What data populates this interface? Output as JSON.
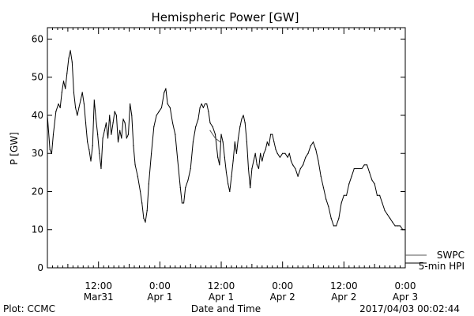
{
  "chart_data": {
    "type": "line",
    "title": "Hemispheric Power [GW]",
    "ylabel": "P [GW]",
    "xlabel": "Date and Time",
    "ylim": [
      0,
      63
    ],
    "yticks": [
      0,
      10,
      20,
      30,
      40,
      50,
      60
    ],
    "xlim": [
      "2017-03-31T02:00",
      "2017-04-03T00:00"
    ],
    "xticks": [
      {
        "t": "2017-03-31T12:00",
        "line1": "12:00",
        "line2": "Mar31"
      },
      {
        "t": "2017-04-01T00:00",
        "line1": "0:00",
        "line2": "Apr 1"
      },
      {
        "t": "2017-04-01T12:00",
        "line1": "12:00",
        "line2": "Apr 1"
      },
      {
        "t": "2017-04-02T00:00",
        "line1": "0:00",
        "line2": "Apr 2"
      },
      {
        "t": "2017-04-02T12:00",
        "line1": "12:00",
        "line2": "Apr 2"
      },
      {
        "t": "2017-04-03T00:00",
        "line1": "0:00",
        "line2": "Apr 3"
      }
    ],
    "grid": false,
    "legend": {
      "placement": "bottom-right outside",
      "entries": [
        "SWPC",
        "5-min HPI"
      ]
    },
    "series": [
      {
        "name": "5-min HPI",
        "color": "#000000",
        "points": [
          [
            "2017-03-31T02:00",
            40
          ],
          [
            "2017-03-31T02:30",
            31
          ],
          [
            "2017-03-31T02:50",
            30
          ],
          [
            "2017-03-31T03:10",
            35
          ],
          [
            "2017-03-31T03:40",
            41
          ],
          [
            "2017-03-31T04:10",
            43
          ],
          [
            "2017-03-31T04:30",
            42
          ],
          [
            "2017-03-31T04:50",
            46
          ],
          [
            "2017-03-31T05:10",
            49
          ],
          [
            "2017-03-31T05:30",
            47
          ],
          [
            "2017-03-31T05:50",
            51
          ],
          [
            "2017-03-31T06:10",
            55
          ],
          [
            "2017-03-31T06:30",
            57
          ],
          [
            "2017-03-31T06:50",
            54
          ],
          [
            "2017-03-31T07:10",
            46
          ],
          [
            "2017-03-31T07:30",
            42
          ],
          [
            "2017-03-31T07:50",
            40
          ],
          [
            "2017-03-31T08:10",
            42
          ],
          [
            "2017-03-31T08:30",
            44
          ],
          [
            "2017-03-31T08:50",
            46
          ],
          [
            "2017-03-31T09:10",
            43
          ],
          [
            "2017-03-31T09:30",
            38
          ],
          [
            "2017-03-31T09:50",
            33
          ],
          [
            "2017-03-31T10:10",
            31
          ],
          [
            "2017-03-31T10:30",
            28
          ],
          [
            "2017-03-31T10:50",
            32
          ],
          [
            "2017-03-31T11:10",
            44
          ],
          [
            "2017-03-31T11:30",
            39
          ],
          [
            "2017-03-31T11:50",
            35
          ],
          [
            "2017-03-31T12:10",
            30
          ],
          [
            "2017-03-31T12:30",
            26
          ],
          [
            "2017-03-31T12:50",
            34
          ],
          [
            "2017-03-31T13:10",
            36
          ],
          [
            "2017-03-31T13:30",
            38
          ],
          [
            "2017-03-31T13:50",
            34
          ],
          [
            "2017-03-31T14:10",
            40
          ],
          [
            "2017-03-31T14:30",
            35
          ],
          [
            "2017-03-31T14:50",
            38
          ],
          [
            "2017-03-31T15:10",
            41
          ],
          [
            "2017-03-31T15:30",
            40
          ],
          [
            "2017-03-31T15:50",
            33
          ],
          [
            "2017-03-31T16:10",
            36
          ],
          [
            "2017-03-31T16:30",
            34
          ],
          [
            "2017-03-31T16:50",
            39
          ],
          [
            "2017-03-31T17:10",
            38
          ],
          [
            "2017-03-31T17:30",
            34
          ],
          [
            "2017-03-31T17:50",
            35
          ],
          [
            "2017-03-31T18:10",
            43
          ],
          [
            "2017-03-31T18:30",
            40
          ],
          [
            "2017-03-31T18:50",
            32
          ],
          [
            "2017-03-31T19:10",
            27
          ],
          [
            "2017-03-31T19:40",
            24
          ],
          [
            "2017-03-31T20:10",
            20
          ],
          [
            "2017-03-31T20:30",
            17
          ],
          [
            "2017-03-31T20:50",
            13
          ],
          [
            "2017-03-31T21:10",
            12
          ],
          [
            "2017-03-31T21:30",
            15
          ],
          [
            "2017-03-31T21:50",
            22
          ],
          [
            "2017-03-31T22:20",
            30
          ],
          [
            "2017-03-31T22:50",
            37
          ],
          [
            "2017-03-31T23:20",
            40
          ],
          [
            "2017-03-31T23:50",
            41
          ],
          [
            "2017-04-01T00:20",
            42
          ],
          [
            "2017-04-01T00:50",
            46
          ],
          [
            "2017-04-01T01:10",
            47
          ],
          [
            "2017-04-01T01:30",
            43
          ],
          [
            "2017-04-01T02:00",
            42
          ],
          [
            "2017-04-01T02:30",
            38
          ],
          [
            "2017-04-01T03:00",
            35
          ],
          [
            "2017-04-01T03:30",
            28
          ],
          [
            "2017-04-01T04:00",
            21
          ],
          [
            "2017-04-01T04:20",
            17
          ],
          [
            "2017-04-01T04:40",
            17
          ],
          [
            "2017-04-01T05:00",
            21
          ],
          [
            "2017-04-01T05:30",
            23
          ],
          [
            "2017-04-01T06:00",
            26
          ],
          [
            "2017-04-01T06:30",
            33
          ],
          [
            "2017-04-01T07:00",
            37
          ],
          [
            "2017-04-01T07:30",
            39
          ],
          [
            "2017-04-01T07:50",
            42
          ],
          [
            "2017-04-01T08:10",
            43
          ],
          [
            "2017-04-01T08:30",
            42
          ],
          [
            "2017-04-01T08:50",
            43
          ],
          [
            "2017-04-01T09:10",
            43
          ],
          [
            "2017-04-01T09:30",
            41
          ],
          [
            "2017-04-01T09:50",
            38
          ],
          [
            "2017-04-01T10:20",
            37
          ],
          [
            "2017-04-01T10:50",
            35
          ],
          [
            "2017-04-01T11:20",
            29
          ],
          [
            "2017-04-01T11:40",
            27
          ],
          [
            "2017-04-01T12:00",
            35
          ],
          [
            "2017-04-01T12:20",
            33
          ],
          [
            "2017-04-01T12:40",
            29
          ],
          [
            "2017-04-01T13:00",
            25
          ],
          [
            "2017-04-01T13:20",
            22
          ],
          [
            "2017-04-01T13:40",
            20
          ],
          [
            "2017-04-01T14:00",
            24
          ],
          [
            "2017-04-01T14:20",
            28
          ],
          [
            "2017-04-01T14:40",
            33
          ],
          [
            "2017-04-01T15:00",
            30
          ],
          [
            "2017-04-01T15:20",
            34
          ],
          [
            "2017-04-01T15:40",
            37
          ],
          [
            "2017-04-01T16:00",
            39
          ],
          [
            "2017-04-01T16:20",
            40
          ],
          [
            "2017-04-01T16:40",
            38
          ],
          [
            "2017-04-01T17:00",
            33
          ],
          [
            "2017-04-01T17:20",
            26
          ],
          [
            "2017-04-01T17:40",
            21
          ],
          [
            "2017-04-01T18:00",
            26
          ],
          [
            "2017-04-01T18:20",
            28
          ],
          [
            "2017-04-01T18:40",
            30
          ],
          [
            "2017-04-01T19:00",
            27
          ],
          [
            "2017-04-01T19:20",
            26
          ],
          [
            "2017-04-01T19:40",
            30
          ],
          [
            "2017-04-01T20:00",
            28
          ],
          [
            "2017-04-01T20:20",
            30
          ],
          [
            "2017-04-01T20:40",
            31
          ],
          [
            "2017-04-01T21:00",
            33
          ],
          [
            "2017-04-01T21:20",
            32
          ],
          [
            "2017-04-01T21:40",
            35
          ],
          [
            "2017-04-01T22:00",
            35
          ],
          [
            "2017-04-01T22:20",
            33
          ],
          [
            "2017-04-01T22:40",
            31
          ],
          [
            "2017-04-01T23:00",
            30
          ],
          [
            "2017-04-01T23:30",
            29
          ],
          [
            "2017-04-02T00:00",
            30
          ],
          [
            "2017-04-02T00:30",
            30
          ],
          [
            "2017-04-02T01:00",
            29
          ],
          [
            "2017-04-02T01:20",
            30
          ],
          [
            "2017-04-02T01:40",
            28
          ],
          [
            "2017-04-02T02:00",
            27
          ],
          [
            "2017-04-02T02:30",
            26
          ],
          [
            "2017-04-02T03:00",
            24
          ],
          [
            "2017-04-02T03:30",
            26
          ],
          [
            "2017-04-02T04:00",
            27
          ],
          [
            "2017-04-02T04:30",
            29
          ],
          [
            "2017-04-02T05:00",
            30
          ],
          [
            "2017-04-02T05:30",
            32
          ],
          [
            "2017-04-02T06:00",
            33
          ],
          [
            "2017-04-02T06:30",
            31
          ],
          [
            "2017-04-02T07:00",
            28
          ],
          [
            "2017-04-02T07:30",
            24
          ],
          [
            "2017-04-02T08:00",
            21
          ],
          [
            "2017-04-02T08:30",
            18
          ],
          [
            "2017-04-02T09:00",
            16
          ],
          [
            "2017-04-02T09:30",
            13
          ],
          [
            "2017-04-02T10:00",
            11
          ],
          [
            "2017-04-02T10:30",
            11
          ],
          [
            "2017-04-02T11:00",
            13
          ],
          [
            "2017-04-02T11:30",
            17
          ],
          [
            "2017-04-02T12:00",
            19
          ],
          [
            "2017-04-02T12:30",
            19
          ],
          [
            "2017-04-02T13:00",
            22
          ],
          [
            "2017-04-02T13:30",
            24
          ],
          [
            "2017-04-02T14:00",
            26
          ],
          [
            "2017-04-02T14:30",
            26
          ],
          [
            "2017-04-02T15:00",
            26
          ],
          [
            "2017-04-02T15:30",
            26
          ],
          [
            "2017-04-02T16:00",
            27
          ],
          [
            "2017-04-02T16:30",
            27
          ],
          [
            "2017-04-02T17:00",
            25
          ],
          [
            "2017-04-02T17:30",
            23
          ],
          [
            "2017-04-02T18:00",
            22
          ],
          [
            "2017-04-02T18:30",
            19
          ],
          [
            "2017-04-02T19:00",
            19
          ],
          [
            "2017-04-02T19:30",
            17
          ],
          [
            "2017-04-02T20:00",
            15
          ],
          [
            "2017-04-02T20:30",
            14
          ],
          [
            "2017-04-02T21:00",
            13
          ],
          [
            "2017-04-02T21:30",
            12
          ],
          [
            "2017-04-02T22:00",
            11
          ],
          [
            "2017-04-02T22:30",
            11
          ],
          [
            "2017-04-02T23:00",
            11
          ],
          [
            "2017-04-02T23:30",
            10
          ],
          [
            "2017-04-03T00:00",
            10
          ]
        ]
      },
      {
        "name": "SWPC",
        "color": "#555555",
        "points": [
          [
            "2017-04-01T09:50",
            36
          ],
          [
            "2017-04-01T10:50",
            34
          ],
          [
            "2017-04-01T11:50",
            33
          ]
        ]
      }
    ]
  },
  "footer": {
    "source": "Plot: CCMC",
    "timestamp": "2017/04/03 00:02:44"
  }
}
